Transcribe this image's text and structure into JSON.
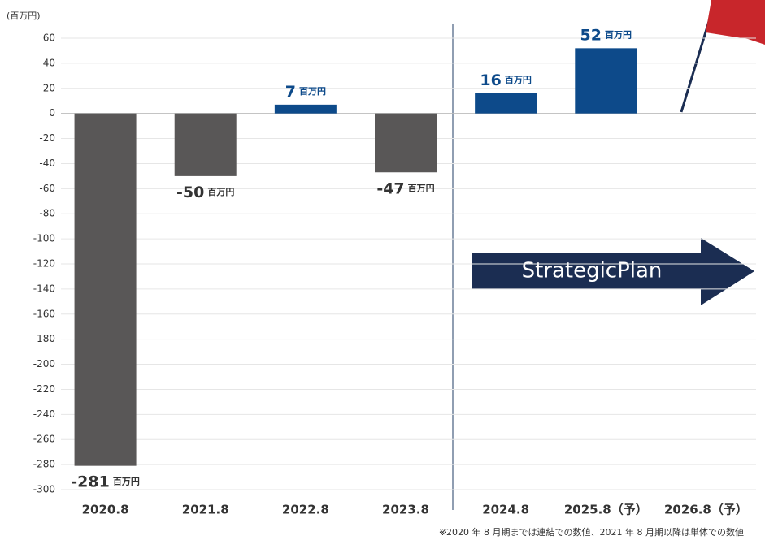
{
  "chart_data": {
    "type": "bar",
    "y_unit": "(百万円)",
    "categories": [
      "2020.8",
      "2021.8",
      "2022.8",
      "2023.8",
      "2024.8",
      "2025.8（予）",
      "2026.8（予）"
    ],
    "values": [
      -281,
      -50,
      7,
      -47,
      16,
      52,
      null
    ],
    "value_unit": "百万円",
    "color_positive": "#0d4a8a",
    "color_negative": "#595757",
    "ylim": [
      -300,
      60
    ],
    "yticks": [
      60,
      40,
      20,
      0,
      -20,
      -40,
      -60,
      -80,
      -100,
      -120,
      -140,
      -160,
      -180,
      -200,
      -220,
      -240,
      -260,
      -280,
      -300
    ],
    "grid": true,
    "annotation": "StrategicPlan",
    "footnote": "※2020 年 8 月期までは連結での数値、2021 年 8 月期以降は単体での数値"
  }
}
